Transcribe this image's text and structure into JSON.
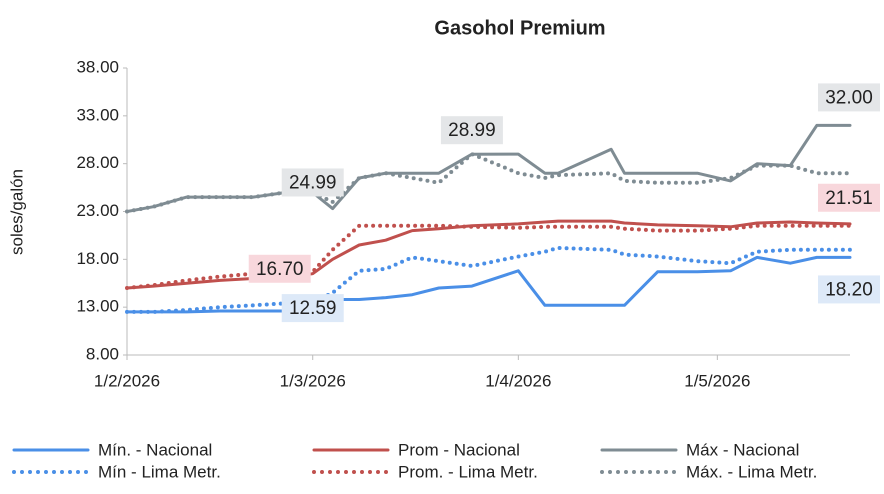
{
  "chart_data": {
    "type": "line",
    "title": "Gasohol Premium",
    "y_label": "soles/galón",
    "x": [
      "2026-02-01",
      "2026-02-05",
      "2026-02-10",
      "2026-02-15",
      "2026-02-20",
      "2026-02-25",
      "2026-03-01",
      "2026-03-04",
      "2026-03-08",
      "2026-03-12",
      "2026-03-16",
      "2026-03-20",
      "2026-03-25",
      "2026-04-01",
      "2026-04-05",
      "2026-04-07",
      "2026-04-15",
      "2026-04-17",
      "2026-04-22",
      "2026-04-28",
      "2026-05-03",
      "2026-05-07",
      "2026-05-12",
      "2026-05-16",
      "2026-05-21"
    ],
    "xlim": [
      "2026-02-01",
      "2026-05-21"
    ],
    "xticks": [
      {
        "value": "2026-02-01",
        "label": "1/2/2026"
      },
      {
        "value": "2026-03-01",
        "label": "1/3/2026"
      },
      {
        "value": "2026-04-01",
        "label": "1/4/2026"
      },
      {
        "value": "2026-05-01",
        "label": "1/5/2026"
      }
    ],
    "ylim": [
      8,
      38
    ],
    "yticks": [
      {
        "value": 8,
        "label": "8.00"
      },
      {
        "value": 13,
        "label": "13.00"
      },
      {
        "value": 18,
        "label": "18.00"
      },
      {
        "value": 23,
        "label": "23.00"
      },
      {
        "value": 28,
        "label": "28.00"
      },
      {
        "value": 33,
        "label": "33.00"
      },
      {
        "value": 38,
        "label": "38.00"
      }
    ],
    "grid": false,
    "legend": "bottom",
    "series": [
      {
        "name": "Mín. - Nacional",
        "color": "#4a8fe7",
        "dash": "solid",
        "label_color": "#dde9f8",
        "values": [
          12.5,
          12.5,
          12.5,
          12.6,
          12.6,
          12.6,
          12.59,
          13.8,
          13.8,
          14,
          14.3,
          15,
          15.2,
          16.8,
          13.2,
          13.2,
          13.2,
          13.2,
          16.7,
          16.7,
          16.8,
          18.2,
          17.6,
          18.2,
          18.2
        ],
        "value_labels": [
          null,
          null,
          null,
          null,
          null,
          null,
          "12.59",
          null,
          null,
          null,
          null,
          null,
          null,
          null,
          null,
          null,
          null,
          null,
          null,
          null,
          null,
          null,
          null,
          null,
          "18.20"
        ]
      },
      {
        "name": "Prom - Nacional",
        "color": "#c0504d",
        "dash": "solid",
        "values": [
          15,
          15.2,
          15.5,
          15.8,
          16,
          16.1,
          16.5,
          18,
          19.5,
          20,
          21,
          21.2,
          21.5,
          21.7,
          21.9,
          22,
          22,
          21.8,
          21.6,
          21.5,
          21.4,
          21.8,
          21.9,
          21.8,
          21.7
        ]
      },
      {
        "name": "Máx - Nacional",
        "color": "#7f8c93",
        "dash": "solid",
        "label_color": "#e4e6e8",
        "values": [
          23,
          23.5,
          24.5,
          24.5,
          24.5,
          25,
          24.99,
          23.3,
          26.5,
          27,
          27,
          27,
          28.99,
          29,
          27,
          27,
          29.5,
          27,
          27,
          27,
          26.2,
          28,
          27.8,
          32,
          32
        ],
        "value_labels": [
          null,
          null,
          null,
          null,
          null,
          null,
          "24.99",
          null,
          null,
          null,
          null,
          null,
          "28.99",
          null,
          null,
          null,
          null,
          null,
          null,
          null,
          null,
          null,
          null,
          null,
          "32.00"
        ]
      },
      {
        "name": "Mín - Lima Metr.",
        "color": "#4a8fe7",
        "dash": "dotted",
        "values": [
          12.5,
          12.5,
          12.7,
          13,
          13.2,
          13.4,
          13.5,
          14.5,
          16.8,
          17,
          18.2,
          17.8,
          17.3,
          18.3,
          18.8,
          19.2,
          19,
          18.5,
          18.3,
          17.8,
          17.6,
          18.8,
          19,
          19,
          19
        ]
      },
      {
        "name": "Prom. - Lima Metr.",
        "color": "#c0504d",
        "dash": "dotted",
        "label_color": "#f8d7dc",
        "values": [
          15,
          15.3,
          15.8,
          16.2,
          16.5,
          16.7,
          16.7,
          19,
          21.5,
          21.5,
          21.5,
          21.5,
          21.4,
          21.3,
          21.4,
          21.4,
          21.4,
          21.2,
          21,
          21,
          21.2,
          21.5,
          21.5,
          21.5,
          21.51
        ],
        "value_labels": [
          null,
          null,
          null,
          null,
          null,
          null,
          "16.70",
          null,
          null,
          null,
          null,
          null,
          null,
          null,
          null,
          null,
          null,
          null,
          null,
          null,
          null,
          null,
          null,
          null,
          "21.51"
        ]
      },
      {
        "name": "Máx. -  Lima Metr.",
        "color": "#7f8c93",
        "dash": "dotted",
        "values": [
          23,
          23.5,
          24.5,
          24.5,
          24.5,
          25,
          25,
          24,
          26.5,
          27,
          26.5,
          26,
          29,
          27,
          26.5,
          26.8,
          27,
          26.2,
          26,
          26,
          26.5,
          27.8,
          27.8,
          27,
          27
        ]
      }
    ]
  }
}
